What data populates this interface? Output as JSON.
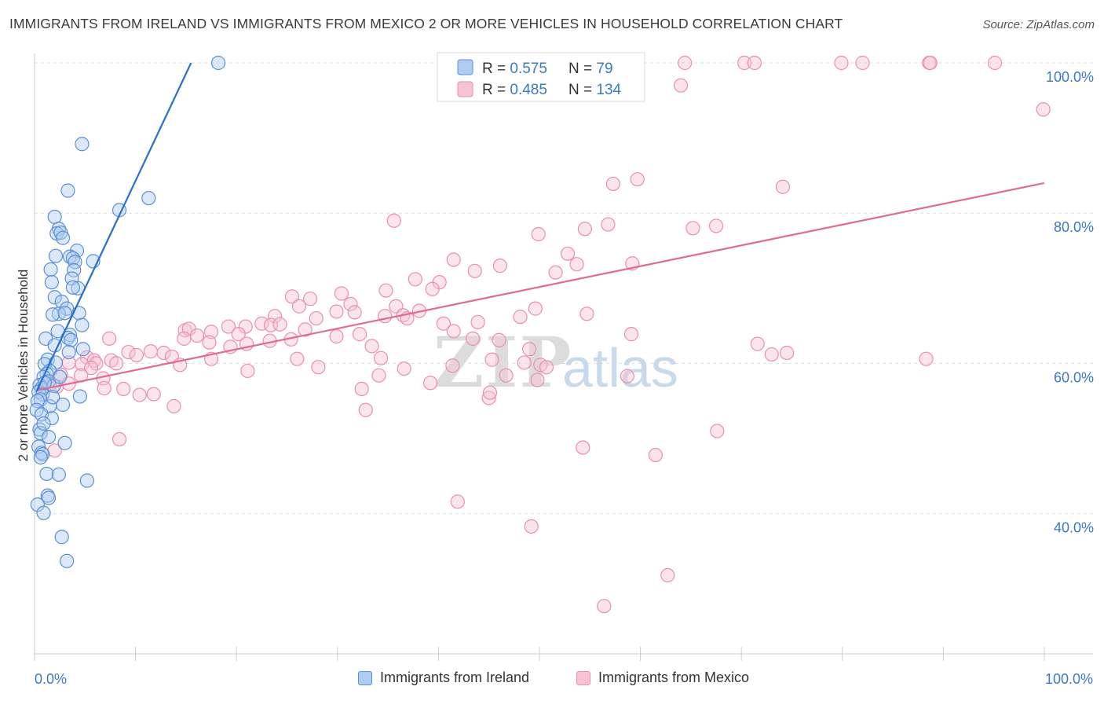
{
  "header": {
    "title": "IMMIGRANTS FROM IRELAND VS IMMIGRANTS FROM MEXICO 2 OR MORE VEHICLES IN HOUSEHOLD CORRELATION CHART",
    "source": "Source: ZipAtlas.com"
  },
  "colors": {
    "ireland_fill": "#aecbf0",
    "ireland_stroke": "#5b8fd6",
    "ireland_line": "#2a6fcc",
    "mexico_fill": "#f7c3d3",
    "mexico_stroke": "#e88fae",
    "mexico_line": "#e06a94",
    "value_blue": "#3a78c9",
    "grid": "#dddddd",
    "watermark": "#d9d9d9",
    "watermark_atlas": "#c5d6ea"
  },
  "legend_top": {
    "series1": {
      "r_label": "R = ",
      "r_value": "0.575",
      "n_label": "N = ",
      "n_value": "79"
    },
    "series2": {
      "r_label": "R = ",
      "r_value": "0.485",
      "n_label": "N = ",
      "n_value": "134"
    }
  },
  "legend_bottom": {
    "series1": "Immigrants from Ireland",
    "series2": "Immigrants from Mexico"
  },
  "watermark": {
    "zip": "ZIP",
    "atlas": "atlas"
  },
  "chart_data": {
    "type": "scatter",
    "title": "IMMIGRANTS FROM IRELAND VS IMMIGRANTS FROM MEXICO 2 OR MORE VEHICLES IN HOUSEHOLD CORRELATION CHART",
    "xlabel": "",
    "ylabel": "2 or more Vehicles in Household",
    "xlim": [
      0,
      100
    ],
    "ylim": [
      20,
      101
    ],
    "x_tick_labels": [
      "0.0%",
      "100.0%"
    ],
    "y_ticks": [
      40,
      60,
      80,
      100
    ],
    "y_tick_labels": [
      "40.0%",
      "60.0%",
      "80.0%",
      "100.0%"
    ],
    "series": [
      {
        "name": "Immigrants from Ireland",
        "R": 0.575,
        "N": 79,
        "trend": {
          "x": [
            0.2,
            15.5
          ],
          "y": [
            56.3,
            100.0
          ]
        },
        "points": [
          [
            18.2,
            100.0
          ],
          [
            4.7,
            89.2
          ],
          [
            3.3,
            83.0
          ],
          [
            8.4,
            80.4
          ],
          [
            11.3,
            82.0
          ],
          [
            2.0,
            79.5
          ],
          [
            2.4,
            77.9
          ],
          [
            2.2,
            77.3
          ],
          [
            2.6,
            77.4
          ],
          [
            2.8,
            76.7
          ],
          [
            4.2,
            75.0
          ],
          [
            3.5,
            74.2
          ],
          [
            3.8,
            74.0
          ],
          [
            5.8,
            73.6
          ],
          [
            4.0,
            73.5
          ],
          [
            2.1,
            74.3
          ],
          [
            1.6,
            72.5
          ],
          [
            3.9,
            72.4
          ],
          [
            3.7,
            71.3
          ],
          [
            1.7,
            70.8
          ],
          [
            4.3,
            70.0
          ],
          [
            3.8,
            70.1
          ],
          [
            2.0,
            68.8
          ],
          [
            2.7,
            68.2
          ],
          [
            3.2,
            67.3
          ],
          [
            4.4,
            66.7
          ],
          [
            2.4,
            66.6
          ],
          [
            1.8,
            66.5
          ],
          [
            3.0,
            66.7
          ],
          [
            4.7,
            65.1
          ],
          [
            2.3,
            64.3
          ],
          [
            3.5,
            63.8
          ],
          [
            3.3,
            63.4
          ],
          [
            1.1,
            63.3
          ],
          [
            3.6,
            63.1
          ],
          [
            2.0,
            62.4
          ],
          [
            4.8,
            61.9
          ],
          [
            3.4,
            61.5
          ],
          [
            1.3,
            60.5
          ],
          [
            2.1,
            60.1
          ],
          [
            1.0,
            59.9
          ],
          [
            1.5,
            59.0
          ],
          [
            1.2,
            58.6
          ],
          [
            0.9,
            58.2
          ],
          [
            1.4,
            57.6
          ],
          [
            0.5,
            57.1
          ],
          [
            0.7,
            56.7
          ],
          [
            1.9,
            57.0
          ],
          [
            0.4,
            56.2
          ],
          [
            0.8,
            55.9
          ],
          [
            4.5,
            55.6
          ],
          [
            0.6,
            55.2
          ],
          [
            0.3,
            55.0
          ],
          [
            2.8,
            54.5
          ],
          [
            1.5,
            54.3
          ],
          [
            0.2,
            53.8
          ],
          [
            0.7,
            53.2
          ],
          [
            1.7,
            52.7
          ],
          [
            0.5,
            51.2
          ],
          [
            0.6,
            50.7
          ],
          [
            1.4,
            50.2
          ],
          [
            3.0,
            49.4
          ],
          [
            0.4,
            48.9
          ],
          [
            0.7,
            48.1
          ],
          [
            0.8,
            47.9
          ],
          [
            0.6,
            47.5
          ],
          [
            1.2,
            45.3
          ],
          [
            2.4,
            45.2
          ],
          [
            5.2,
            44.4
          ],
          [
            1.3,
            42.4
          ],
          [
            1.4,
            42.1
          ],
          [
            0.3,
            41.2
          ],
          [
            0.9,
            40.1
          ],
          [
            2.7,
            36.9
          ],
          [
            3.2,
            33.7
          ],
          [
            1.0,
            57.4
          ],
          [
            2.5,
            58.2
          ],
          [
            1.8,
            55.5
          ],
          [
            0.9,
            52.0
          ]
        ]
      },
      {
        "name": "Immigrants from Mexico",
        "R": 0.485,
        "N": 134,
        "trend": {
          "x": [
            0.2,
            100.0
          ],
          "y": [
            56.4,
            84.0
          ]
        },
        "points": [
          [
            59.6,
            100.0
          ],
          [
            64.4,
            100.0
          ],
          [
            70.3,
            100.0
          ],
          [
            71.3,
            100.0
          ],
          [
            82.0,
            100.0
          ],
          [
            95.1,
            100.0
          ],
          [
            79.9,
            100.0
          ],
          [
            88.6,
            100.0
          ],
          [
            88.7,
            100.0
          ],
          [
            64.0,
            97.0
          ],
          [
            99.9,
            93.8
          ],
          [
            57.3,
            83.9
          ],
          [
            59.7,
            84.5
          ],
          [
            74.1,
            83.5
          ],
          [
            35.6,
            79.0
          ],
          [
            54.5,
            77.9
          ],
          [
            56.8,
            78.5
          ],
          [
            49.9,
            77.2
          ],
          [
            65.2,
            78.0
          ],
          [
            67.5,
            78.3
          ],
          [
            41.5,
            73.8
          ],
          [
            46.1,
            73.0
          ],
          [
            43.6,
            72.3
          ],
          [
            53.7,
            73.2
          ],
          [
            52.8,
            74.6
          ],
          [
            59.2,
            73.3
          ],
          [
            37.7,
            71.2
          ],
          [
            40.1,
            70.8
          ],
          [
            51.6,
            72.1
          ],
          [
            34.8,
            69.7
          ],
          [
            30.4,
            69.3
          ],
          [
            39.4,
            69.9
          ],
          [
            25.5,
            68.9
          ],
          [
            27.3,
            68.6
          ],
          [
            26.2,
            67.6
          ],
          [
            31.3,
            67.9
          ],
          [
            29.9,
            66.9
          ],
          [
            35.8,
            67.6
          ],
          [
            38.1,
            67.0
          ],
          [
            31.7,
            66.8
          ],
          [
            23.8,
            66.3
          ],
          [
            36.5,
            66.4
          ],
          [
            49.6,
            67.3
          ],
          [
            54.7,
            66.6
          ],
          [
            27.9,
            66.0
          ],
          [
            34.7,
            66.3
          ],
          [
            36.9,
            66.0
          ],
          [
            40.5,
            65.3
          ],
          [
            43.9,
            65.5
          ],
          [
            22.5,
            65.3
          ],
          [
            19.2,
            64.9
          ],
          [
            20.9,
            64.9
          ],
          [
            23.4,
            65.1
          ],
          [
            24.3,
            65.2
          ],
          [
            26.8,
            64.5
          ],
          [
            48.1,
            66.2
          ],
          [
            14.9,
            64.4
          ],
          [
            15.3,
            64.6
          ],
          [
            17.5,
            64.2
          ],
          [
            20.2,
            63.9
          ],
          [
            29.9,
            63.6
          ],
          [
            32.2,
            63.9
          ],
          [
            41.5,
            64.3
          ],
          [
            43.4,
            63.3
          ],
          [
            46.0,
            63.1
          ],
          [
            59.1,
            63.9
          ],
          [
            7.4,
            63.3
          ],
          [
            14.8,
            63.3
          ],
          [
            16.1,
            63.7
          ],
          [
            17.3,
            62.8
          ],
          [
            19.4,
            62.2
          ],
          [
            21.0,
            62.6
          ],
          [
            23.3,
            63.0
          ],
          [
            25.4,
            63.2
          ],
          [
            33.4,
            62.3
          ],
          [
            49.0,
            61.9
          ],
          [
            71.6,
            62.6
          ],
          [
            74.5,
            61.4
          ],
          [
            73.0,
            61.2
          ],
          [
            88.3,
            60.6
          ],
          [
            9.3,
            61.5
          ],
          [
            10.1,
            61.1
          ],
          [
            11.5,
            61.6
          ],
          [
            12.8,
            61.4
          ],
          [
            13.6,
            60.9
          ],
          [
            17.5,
            60.6
          ],
          [
            26.0,
            60.6
          ],
          [
            34.3,
            60.7
          ],
          [
            45.3,
            60.5
          ],
          [
            48.5,
            60.1
          ],
          [
            5.2,
            60.8
          ],
          [
            5.9,
            60.4
          ],
          [
            6.1,
            60.0
          ],
          [
            7.6,
            60.4
          ],
          [
            8.1,
            60.0
          ],
          [
            4.7,
            59.9
          ],
          [
            3.4,
            60.1
          ],
          [
            5.6,
            59.4
          ],
          [
            14.4,
            59.8
          ],
          [
            21.1,
            59.0
          ],
          [
            28.1,
            59.5
          ],
          [
            36.6,
            59.3
          ],
          [
            41.4,
            59.7
          ],
          [
            50.1,
            59.8
          ],
          [
            50.7,
            59.5
          ],
          [
            2.6,
            58.5
          ],
          [
            4.6,
            58.4
          ],
          [
            6.8,
            58.0
          ],
          [
            34.1,
            58.4
          ],
          [
            46.7,
            58.4
          ],
          [
            58.7,
            58.3
          ],
          [
            49.8,
            57.8
          ],
          [
            1.5,
            57.2
          ],
          [
            2.2,
            56.9
          ],
          [
            3.4,
            57.3
          ],
          [
            6.9,
            56.7
          ],
          [
            8.8,
            56.6
          ],
          [
            10.4,
            55.8
          ],
          [
            11.8,
            55.9
          ],
          [
            32.4,
            56.6
          ],
          [
            45.0,
            55.4
          ],
          [
            45.1,
            56.1
          ],
          [
            39.2,
            57.4
          ],
          [
            13.8,
            54.3
          ],
          [
            32.8,
            53.8
          ],
          [
            67.6,
            51.0
          ],
          [
            8.4,
            49.9
          ],
          [
            54.3,
            48.8
          ],
          [
            61.5,
            47.8
          ],
          [
            41.9,
            41.6
          ],
          [
            49.2,
            38.3
          ],
          [
            62.7,
            31.8
          ],
          [
            56.4,
            27.7
          ],
          [
            2.0,
            48.4
          ]
        ]
      }
    ]
  }
}
